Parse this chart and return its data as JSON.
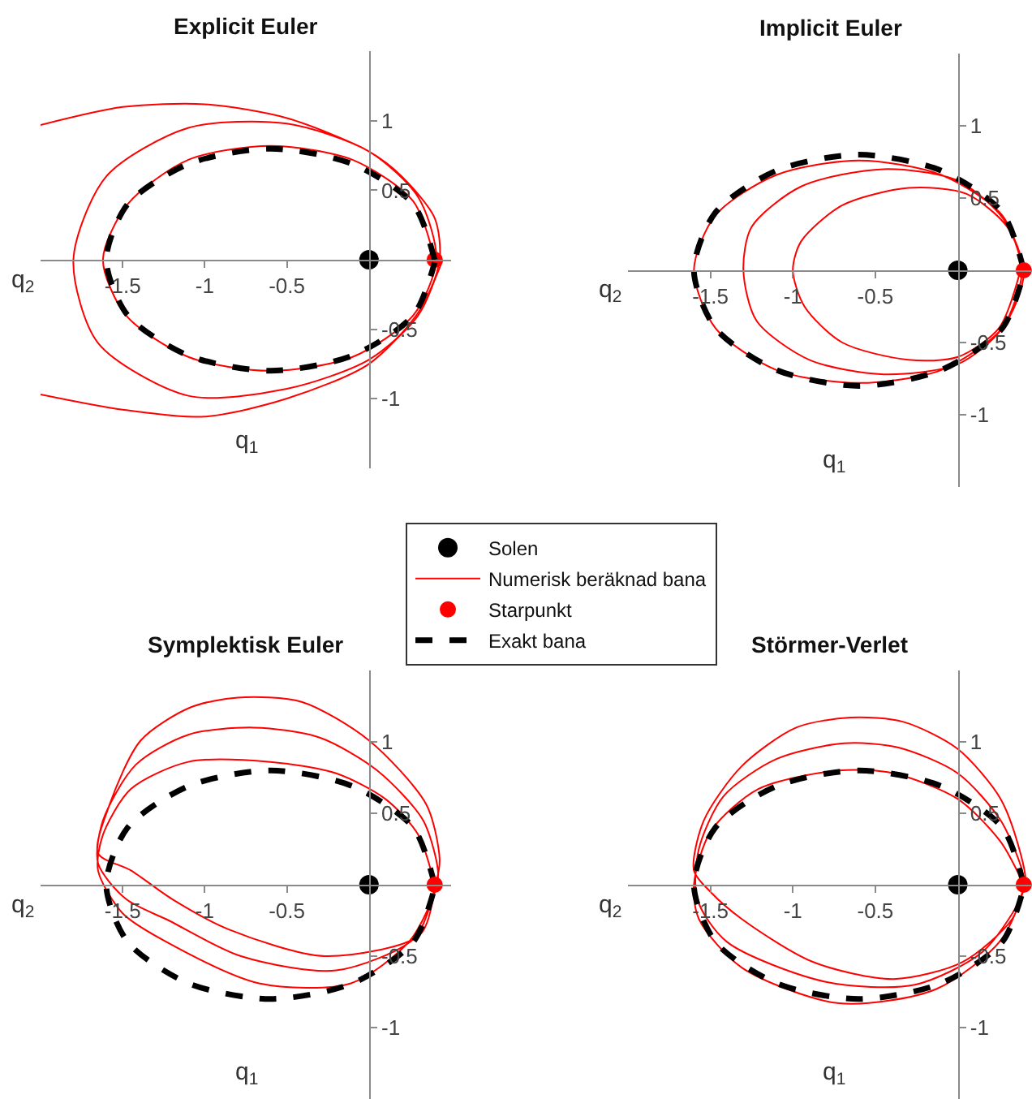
{
  "chart_data": [
    {
      "type": "line",
      "title": "Explicit Euler",
      "xlabel": "q$_{1}$",
      "ylabel": "q$_{2}$",
      "xlim": [
        -2,
        0.5
      ],
      "ylim": [
        -1.5,
        1.5
      ],
      "xticks": [
        -1.5,
        -1,
        -0.5
      ],
      "yticks": [
        -1,
        -0.5,
        0.5,
        1
      ],
      "legend": "bottom",
      "series": [
        {
          "name": "Solen",
          "type": "scatter",
          "marker": "circle",
          "color": "#000000",
          "x": [
            0
          ],
          "values": [
            0
          ]
        },
        {
          "name": "Numerisk beräknad bana",
          "type": "line",
          "color": "#ff0000",
          "x": [
            0.4,
            0.27,
            -0.1,
            -0.6,
            -1.1,
            -1.47,
            -1.62,
            -1.48,
            -1.1,
            -0.6,
            -0.1,
            0.27,
            0.41,
            0.3,
            0,
            -0.5,
            -1.1,
            -1.6,
            -1.8,
            -1.65,
            -1.1,
            -0.5,
            0,
            0.3,
            0.43,
            0.4,
            0.2,
            0,
            -0.5,
            -1,
            -1.5,
            -2,
            null,
            -2,
            -1.5,
            -1,
            -0.5,
            0,
            0.3,
            0.45
          ],
          "values": [
            0,
            0.42,
            0.72,
            0.82,
            0.72,
            0.4,
            0,
            -0.4,
            -0.7,
            -0.8,
            -0.7,
            -0.4,
            0,
            0.45,
            0.78,
            0.98,
            0.95,
            0.6,
            0,
            -0.6,
            -0.98,
            -0.93,
            -0.72,
            -0.4,
            0,
            0.3,
            0.6,
            0.78,
            1.02,
            1.12,
            1.1,
            0.97,
            null,
            -0.97,
            -1.08,
            -1.13,
            -1.0,
            -0.75,
            -0.38,
            0
          ]
        },
        {
          "name": "Starpunkt",
          "type": "scatter",
          "marker": "circle",
          "color": "#ff0000",
          "x": [
            0.4
          ],
          "values": [
            0
          ]
        },
        {
          "name": "Exakt bana",
          "type": "line",
          "line_style": "dashed",
          "color": "#000000",
          "x": [
            0.4,
            0.27,
            -0.1,
            -0.6,
            -1.1,
            -1.47,
            -1.6,
            -1.47,
            -1.1,
            -0.6,
            -0.1,
            0.27,
            0.4
          ],
          "values": [
            0,
            0.4,
            0.69,
            0.8,
            0.69,
            0.4,
            0,
            -0.4,
            -0.69,
            -0.8,
            -0.69,
            -0.4,
            -0.02
          ]
        }
      ]
    },
    {
      "type": "line",
      "title": "Implicit Euler",
      "xlabel": "q$_{1}$",
      "ylabel": "q$_{2}$",
      "xlim": [
        -2,
        0.45
      ],
      "ylim": [
        -1.5,
        1.5
      ],
      "xticks": [
        -1.5,
        -1,
        -0.5
      ],
      "yticks": [
        -1,
        -0.5,
        0.5,
        1
      ],
      "series": [
        {
          "type": "line",
          "color": "#ff0000",
          "x": [
            0.4,
            0.27,
            -0.1,
            -0.6,
            -1.1,
            -1.47,
            -1.6,
            -1.47,
            -1.1,
            -0.6,
            -0.1,
            0.27,
            0.4,
            0.28,
            0,
            -0.45,
            -0.95,
            -1.25,
            -1.3,
            -1.22,
            -0.9,
            -0.45,
            0,
            0.27,
            0.39,
            0.3,
            0.05,
            -0.3,
            -0.7,
            -0.95,
            -1,
            -0.93,
            -0.7,
            -0.3,
            0,
            0.25,
            0.38
          ],
          "values": [
            0,
            0.38,
            0.66,
            0.76,
            0.66,
            0.38,
            0,
            -0.4,
            -0.69,
            -0.78,
            -0.69,
            -0.4,
            -0.02,
            0.35,
            0.62,
            0.7,
            0.58,
            0.3,
            0,
            -0.35,
            -0.62,
            -0.72,
            -0.65,
            -0.4,
            0,
            0.3,
            0.53,
            0.57,
            0.45,
            0.2,
            0,
            -0.25,
            -0.5,
            -0.62,
            -0.6,
            -0.4,
            0
          ]
        },
        {
          "type": "line",
          "line_style": "dashed",
          "color": "#000000",
          "x": [
            0.4,
            0.27,
            -0.1,
            -0.6,
            -1.1,
            -1.47,
            -1.6,
            -1.47,
            -1.1,
            -0.6,
            -0.1,
            0.27,
            0.4
          ],
          "values": [
            0,
            0.4,
            0.69,
            0.8,
            0.69,
            0.4,
            0,
            -0.4,
            -0.69,
            -0.8,
            -0.69,
            -0.4,
            -0.02
          ]
        },
        {
          "type": "scatter",
          "marker": "circle",
          "color": "#000000",
          "x": [
            0
          ],
          "values": [
            0
          ]
        },
        {
          "type": "scatter",
          "marker": "circle",
          "color": "#ff0000",
          "x": [
            0.4
          ],
          "values": [
            0
          ]
        }
      ]
    },
    {
      "type": "line",
      "title": "Symplektisk Euler",
      "xlabel": "q$_{1}$",
      "ylabel": "q$_{2}$",
      "xlim": [
        -2,
        0.5
      ],
      "ylim": [
        -1.5,
        1.5
      ],
      "xticks": [
        -1.5,
        -1,
        -0.5
      ],
      "yticks": [
        -1,
        -0.5,
        0.5,
        1
      ],
      "series": [
        {
          "type": "line",
          "color": "#ff0000",
          "x": [
            0.4,
            0.3,
            0.1,
            -0.2,
            -0.6,
            -1.1,
            -1.45,
            -1.62,
            -1.65,
            -1.5,
            -1.25,
            -0.67,
            -0.11,
            0.25,
            0.41,
            0.42,
            0.33,
            0.05,
            -0.3,
            -0.7,
            -1.1,
            -1.42,
            -1.62,
            -1.65,
            -1.48,
            -1.22,
            -0.78,
            -0.2,
            0.28,
            0.41,
            0.43,
            0.35,
            0,
            -0.41,
            -0.8,
            -1.09,
            -1.39,
            -1.58,
            -1.65,
            -1.45,
            -1.2,
            -0.86,
            -0.27,
            0.31,
            0.4
          ],
          "values": [
            0,
            0.35,
            0.6,
            0.78,
            0.86,
            0.86,
            0.67,
            0.35,
            0.1,
            -0.2,
            -0.39,
            -0.69,
            -0.69,
            -0.39,
            -0.02,
            0.1,
            0.45,
            0.8,
            1.03,
            1.1,
            1.05,
            0.84,
            0.45,
            0.15,
            -0.1,
            -0.25,
            -0.5,
            -0.6,
            -0.37,
            0.02,
            0.18,
            0.56,
            1.01,
            1.28,
            1.31,
            1.24,
            1.01,
            0.56,
            0.22,
            0.1,
            -0.1,
            -0.31,
            -0.5,
            -0.35,
            -0.01
          ]
        },
        {
          "type": "line",
          "line_style": "dashed",
          "color": "#000000",
          "x": [
            0.4,
            0.27,
            -0.1,
            -0.6,
            -1.1,
            -1.47,
            -1.6,
            -1.47,
            -1.1,
            -0.6,
            -0.1,
            0.27,
            0.4
          ],
          "values": [
            0,
            0.4,
            0.69,
            0.8,
            0.69,
            0.4,
            0,
            -0.4,
            -0.69,
            -0.8,
            -0.69,
            -0.4,
            -0.02
          ]
        },
        {
          "type": "scatter",
          "marker": "circle",
          "color": "#000000",
          "x": [
            0
          ],
          "values": [
            0
          ]
        },
        {
          "type": "scatter",
          "marker": "circle",
          "color": "#ff0000",
          "x": [
            0.4
          ],
          "values": [
            0
          ]
        }
      ]
    },
    {
      "type": "line",
      "title": "Störmer-Verlet",
      "xlabel": "q$_{1}$",
      "ylabel": "q$_{2}$",
      "xlim": [
        -2,
        0.45
      ],
      "ylim": [
        -1.5,
        1.5
      ],
      "xticks": [
        -1.5,
        -1,
        -0.5
      ],
      "yticks": [
        -1,
        -0.5,
        0.5,
        1
      ],
      "series": [
        {
          "type": "line",
          "color": "#ff0000",
          "x": [
            0.4,
            0.26,
            0,
            -0.39,
            -0.72,
            -1.21,
            -1.5,
            -1.6,
            -1.57,
            -1.31,
            -0.72,
            -0.13,
            0.26,
            0.4,
            0.39,
            0.26,
            0,
            -0.36,
            -0.69,
            -1.1,
            -1.42,
            -1.57,
            -1.58,
            -1.4,
            -0.8,
            -0.26,
            0.15,
            0.37,
            0.41,
            0.38,
            0.26,
            0,
            -0.33,
            -0.65,
            -0.98,
            -1.31,
            -1.54,
            -1.6,
            -1.5,
            -1.31,
            -0.88,
            -0.39,
            0.03,
            0.33,
            0.4
          ],
          "values": [
            0,
            0.3,
            0.6,
            0.78,
            0.8,
            0.67,
            0.37,
            0,
            -0.24,
            -0.58,
            -0.83,
            -0.73,
            -0.39,
            -0.02,
            0.1,
            0.45,
            0.78,
            0.96,
            0.99,
            0.88,
            0.62,
            0.25,
            -0.1,
            -0.4,
            -0.68,
            -0.7,
            -0.47,
            -0.12,
            0.03,
            0.22,
            0.6,
            0.95,
            1.14,
            1.17,
            1.1,
            0.83,
            0.45,
            0.1,
            -0.05,
            -0.24,
            -0.54,
            -0.66,
            -0.54,
            -0.24,
            -0.01
          ]
        },
        {
          "type": "line",
          "line_style": "dashed",
          "color": "#000000",
          "x": [
            0.4,
            0.27,
            -0.1,
            -0.6,
            -1.1,
            -1.47,
            -1.6,
            -1.47,
            -1.1,
            -0.6,
            -0.1,
            0.27,
            0.4
          ],
          "values": [
            0,
            0.4,
            0.69,
            0.8,
            0.69,
            0.4,
            0,
            -0.4,
            -0.69,
            -0.8,
            -0.69,
            -0.4,
            -0.02
          ]
        },
        {
          "type": "scatter",
          "marker": "circle",
          "color": "#000000",
          "x": [
            0
          ],
          "values": [
            0
          ]
        },
        {
          "type": "scatter",
          "marker": "circle",
          "color": "#ff0000",
          "x": [
            0.4
          ],
          "values": [
            0
          ]
        }
      ]
    }
  ]
}
